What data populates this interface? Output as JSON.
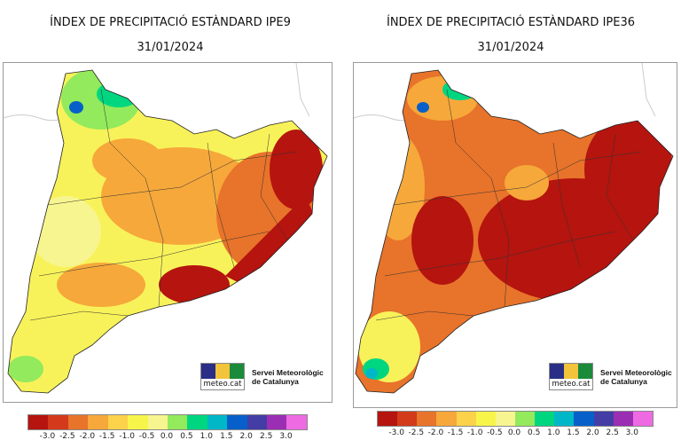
{
  "maps": [
    {
      "title": "ÍNDEX DE PRECIPITACIÓ ESTÀNDARD IPE9",
      "date": "31/01/2024",
      "logo": {
        "brand": "meteo.cat",
        "org_line1": "Servei Meteorològic",
        "org_line2": "de Catalunya"
      },
      "dominant": "moderate"
    },
    {
      "title": "ÍNDEX DE PRECIPITACIÓ ESTÀNDARD IPE36",
      "date": "31/01/2024",
      "logo": {
        "brand": "meteo.cat",
        "org_line1": "Servei Meteorològic",
        "org_line2": "de Catalunya"
      },
      "dominant": "severe"
    }
  ],
  "legend": {
    "colors": [
      "#b5140f",
      "#d23a1b",
      "#e8732a",
      "#f6a83a",
      "#fbd24a",
      "#f8f54a",
      "#f7f58f",
      "#92ea5c",
      "#00d680",
      "#00b7c8",
      "#0760c9",
      "#433da5",
      "#9b2fb3",
      "#ee6ae2"
    ],
    "ticks": [
      "-3.0",
      "-2.5",
      "-2.0",
      "-1.5",
      "-1.0",
      "-0.5",
      "0.0",
      "0.5",
      "1.0",
      "1.5",
      "2.0",
      "2.5",
      "3.0"
    ]
  }
}
